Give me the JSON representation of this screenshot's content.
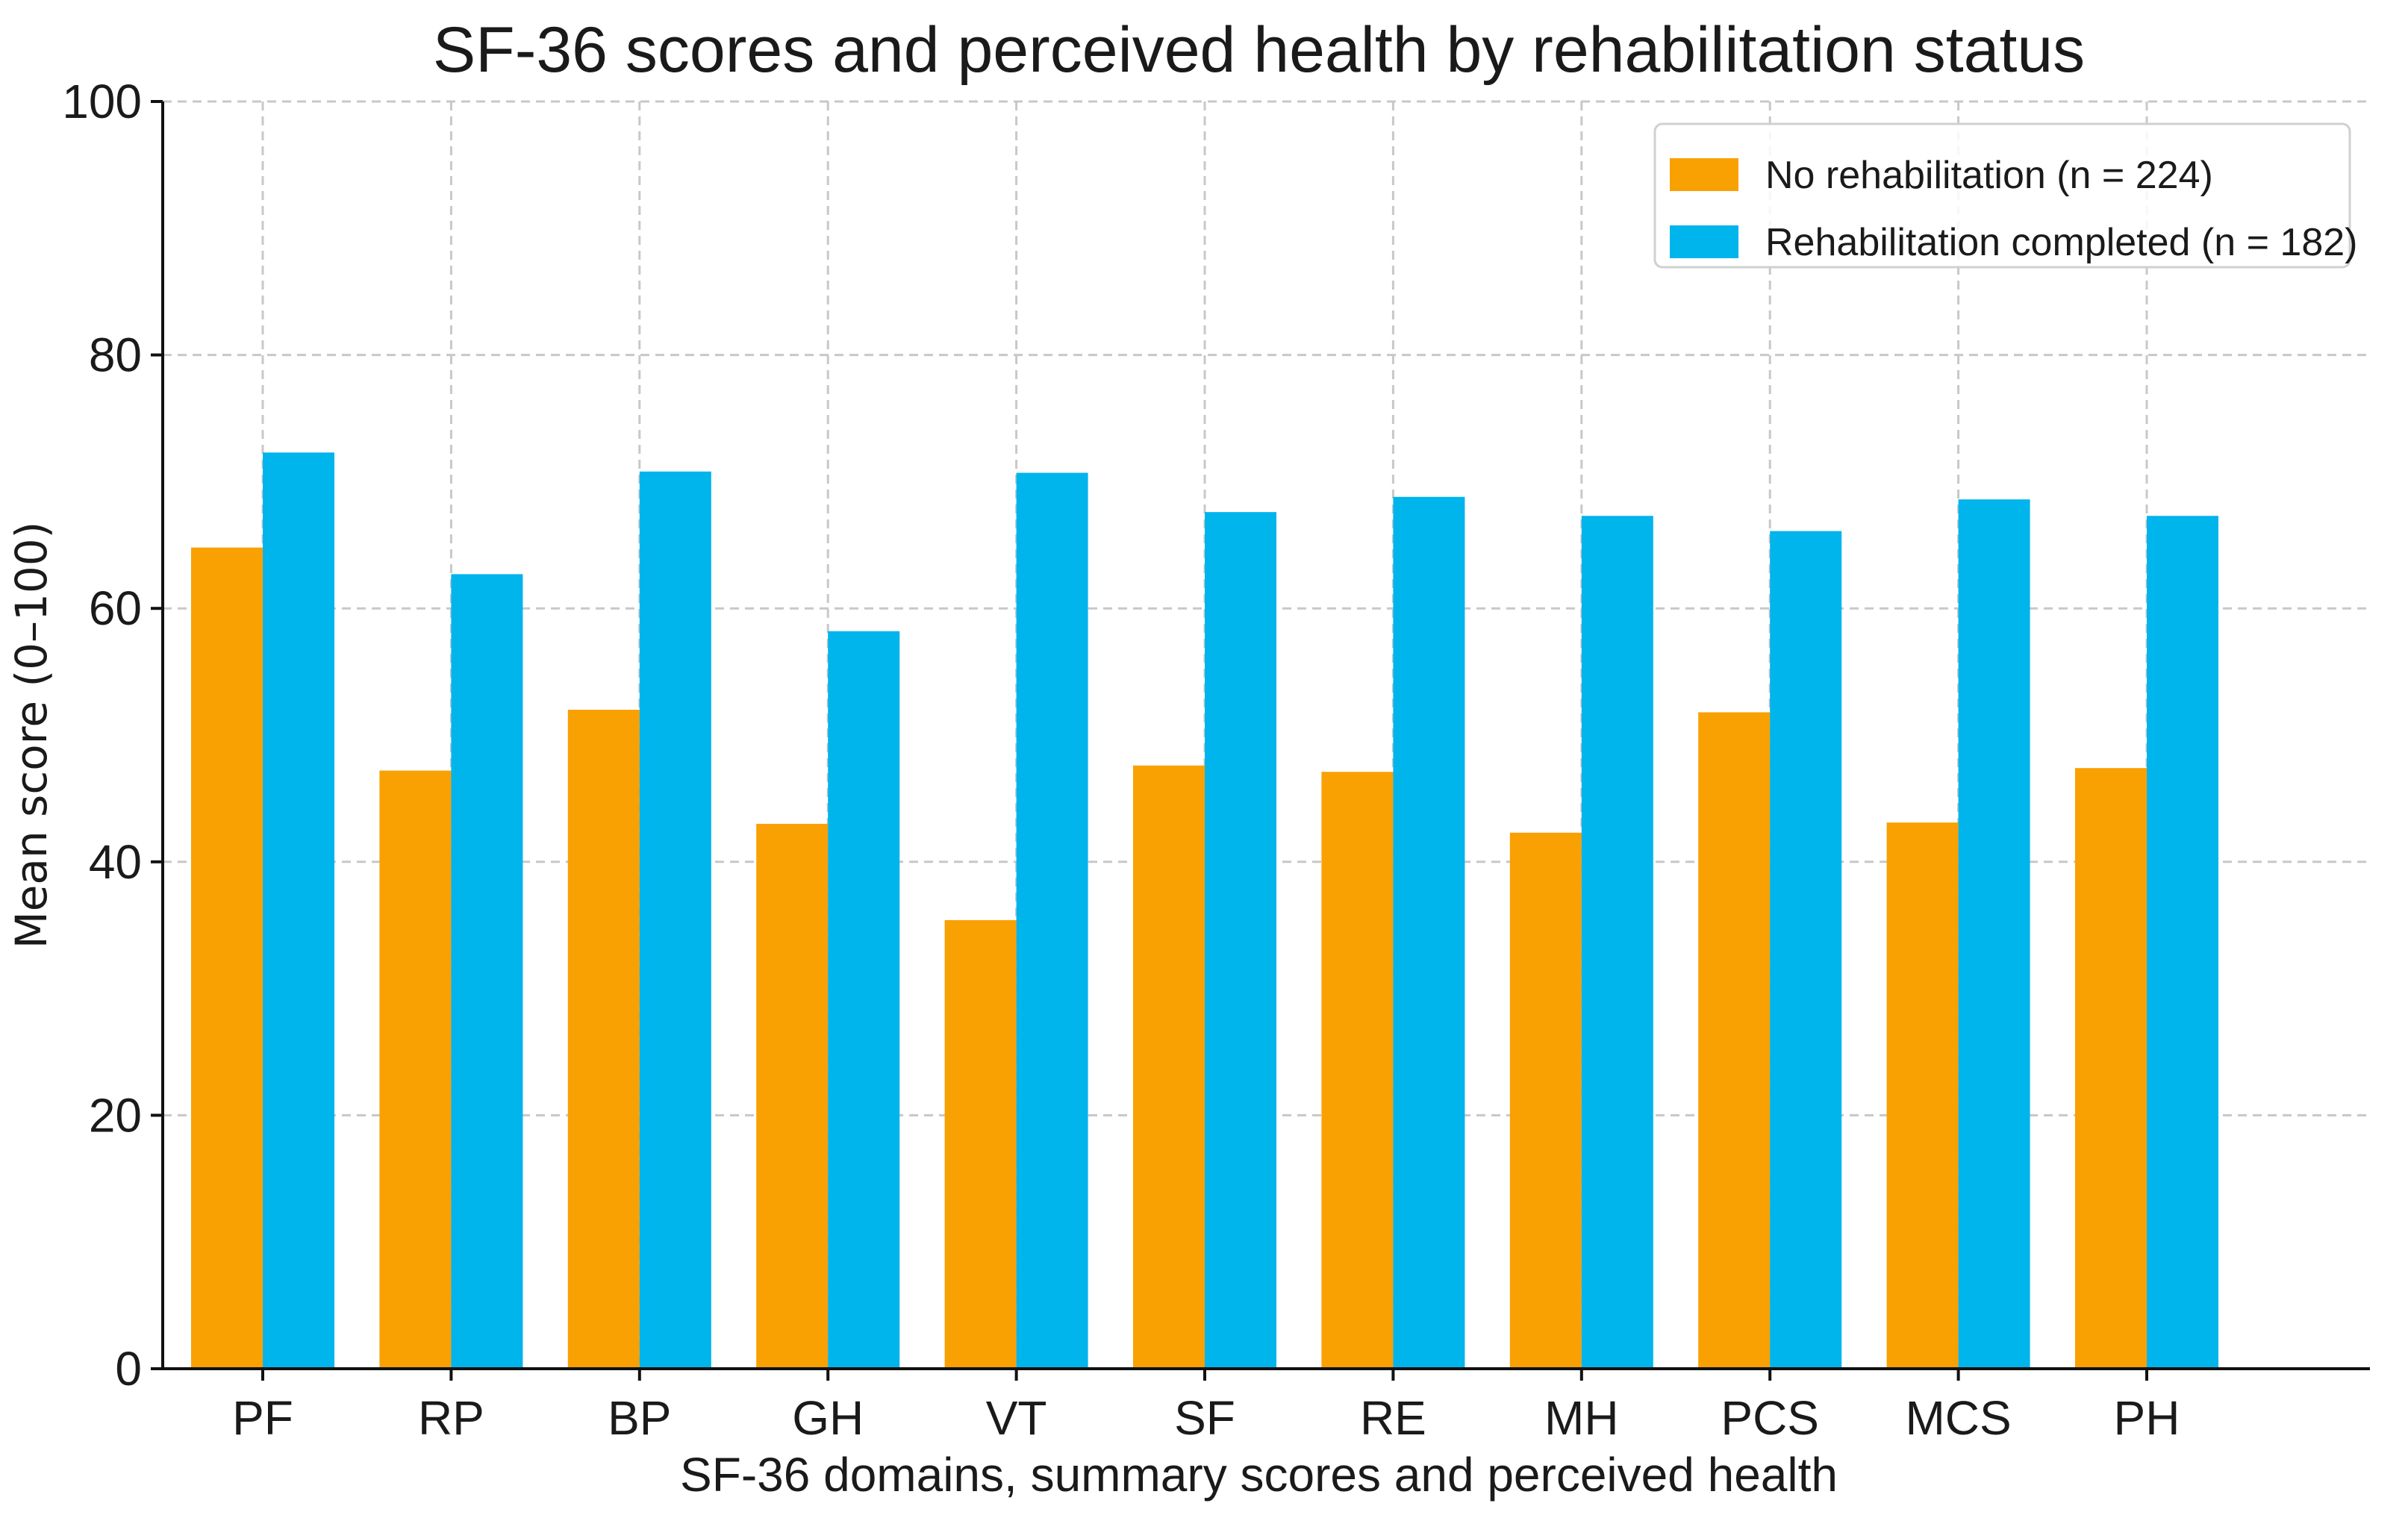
{
  "chart_data": {
    "type": "bar",
    "title": "SF-36 scores and perceived health by rehabilitation status",
    "xlabel": "SF-36 domains, summary scores and perceived health",
    "ylabel": "Mean score (0–100)",
    "ylim": [
      0,
      100
    ],
    "yticks": [
      0,
      20,
      40,
      60,
      80,
      100
    ],
    "grid": true,
    "legend_position": "top-right",
    "categories": [
      "PF",
      "RP",
      "BP",
      "GH",
      "VT",
      "SF",
      "RE",
      "MH",
      "PCS",
      "MCS",
      "PH"
    ],
    "series": [
      {
        "name": "No rehabilitation (n = 224)",
        "color": "#F9A003",
        "values": [
          64.8,
          47.2,
          52.0,
          43.0,
          35.4,
          47.6,
          47.1,
          42.3,
          51.8,
          43.1,
          47.4
        ]
      },
      {
        "name": "Rehabilitation completed (n = 182)",
        "color": "#00B4EC",
        "values": [
          72.3,
          62.7,
          70.8,
          58.2,
          70.7,
          67.6,
          68.8,
          67.3,
          66.1,
          68.6,
          67.3
        ]
      }
    ]
  }
}
